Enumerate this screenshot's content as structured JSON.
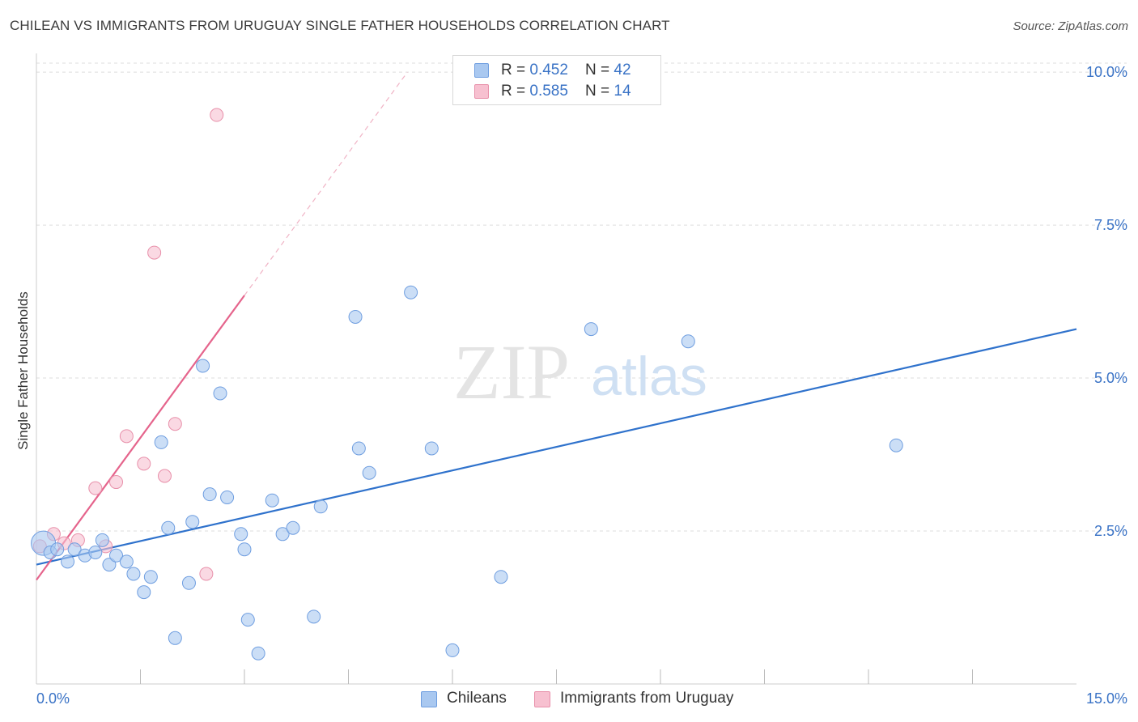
{
  "title": "CHILEAN VS IMMIGRANTS FROM URUGUAY SINGLE FATHER HOUSEHOLDS CORRELATION CHART",
  "source": "Source: ZipAtlas.com",
  "watermark": {
    "zip": "ZIP",
    "atlas": "atlas"
  },
  "legend": {
    "items": [
      {
        "r_label": "R = ",
        "r_value": "0.452",
        "n_label": "N = ",
        "n_value": "42",
        "color": "#a9c8f0",
        "border": "#6f9ee0"
      },
      {
        "r_label": "R = ",
        "r_value": "0.585",
        "n_label": "N = ",
        "n_value": "14",
        "color": "#f7c0d0",
        "border": "#e890aa"
      }
    ]
  },
  "bottom_legend": {
    "series1": "Chileans",
    "series2": "Immigrants from Uruguay"
  },
  "colors": {
    "blue_fill": "#a9c8f0",
    "blue_stroke": "#6f9ee0",
    "blue_line": "#2f72cc",
    "pink_fill": "#f7c0d0",
    "pink_stroke": "#e890aa",
    "pink_line": "#e5648c",
    "tick_label": "#3a73c6",
    "grid": "#dddddd"
  },
  "chart_data": {
    "type": "scatter",
    "title": "CHILEAN VS IMMIGRANTS FROM URUGUAY SINGLE FATHER HOUSEHOLDS CORRELATION CHART",
    "xlabel": "",
    "ylabel": "Single Father Households",
    "xlim": [
      0,
      15
    ],
    "ylim": [
      0,
      10.2
    ],
    "x_tick_labels": [
      {
        "value": 0,
        "label": "0.0%"
      },
      {
        "value": 15,
        "label": "15.0%"
      }
    ],
    "x_minor_ticks": [
      1.5,
      3.0,
      4.5,
      6.0,
      7.5,
      9.0,
      10.5,
      12.0,
      13.5
    ],
    "y_ticks": [
      {
        "value": 2.5,
        "label": "2.5%"
      },
      {
        "value": 5.0,
        "label": "5.0%"
      },
      {
        "value": 7.5,
        "label": "7.5%"
      },
      {
        "value": 10.0,
        "label": "10.0%"
      }
    ],
    "grid": true,
    "series": [
      {
        "name": "Chileans",
        "points": [
          [
            0.1,
            2.3
          ],
          [
            0.2,
            2.15
          ],
          [
            0.3,
            2.2
          ],
          [
            0.45,
            2.0
          ],
          [
            0.55,
            2.2
          ],
          [
            0.7,
            2.1
          ],
          [
            0.85,
            2.15
          ],
          [
            0.95,
            2.35
          ],
          [
            1.05,
            1.95
          ],
          [
            1.15,
            2.1
          ],
          [
            1.3,
            2.0
          ],
          [
            1.4,
            1.8
          ],
          [
            1.55,
            1.5
          ],
          [
            1.65,
            1.75
          ],
          [
            1.8,
            3.95
          ],
          [
            1.9,
            2.55
          ],
          [
            2.0,
            0.75
          ],
          [
            2.2,
            1.65
          ],
          [
            2.25,
            2.65
          ],
          [
            2.4,
            5.2
          ],
          [
            2.5,
            3.1
          ],
          [
            2.65,
            4.75
          ],
          [
            2.75,
            3.05
          ],
          [
            2.95,
            2.45
          ],
          [
            3.0,
            2.2
          ],
          [
            3.05,
            1.05
          ],
          [
            3.2,
            0.5
          ],
          [
            3.4,
            3.0
          ],
          [
            3.55,
            2.45
          ],
          [
            3.7,
            2.55
          ],
          [
            4.0,
            1.1
          ],
          [
            4.1,
            2.9
          ],
          [
            4.6,
            6.0
          ],
          [
            4.65,
            3.85
          ],
          [
            4.8,
            3.45
          ],
          [
            5.4,
            6.4
          ],
          [
            5.7,
            3.85
          ],
          [
            6.0,
            0.55
          ],
          [
            6.7,
            1.75
          ],
          [
            8.0,
            5.8
          ],
          [
            9.4,
            5.6
          ],
          [
            12.4,
            3.9
          ]
        ],
        "trendline": {
          "x": [
            0,
            15
          ],
          "y": [
            1.95,
            5.8
          ]
        }
      },
      {
        "name": "Immigrants from Uruguay",
        "points": [
          [
            0.05,
            2.25
          ],
          [
            0.25,
            2.45
          ],
          [
            0.4,
            2.3
          ],
          [
            0.6,
            2.35
          ],
          [
            0.85,
            3.2
          ],
          [
            1.0,
            2.25
          ],
          [
            1.15,
            3.3
          ],
          [
            1.3,
            4.05
          ],
          [
            1.55,
            3.6
          ],
          [
            1.7,
            7.05
          ],
          [
            1.85,
            3.4
          ],
          [
            2.0,
            4.25
          ],
          [
            2.45,
            1.8
          ],
          [
            2.6,
            9.3
          ]
        ],
        "trendline": {
          "x": [
            0,
            3.0
          ],
          "y": [
            1.7,
            6.35
          ]
        },
        "trendline_dashed_extension": {
          "x": [
            3.0,
            5.35
          ],
          "y": [
            6.35,
            10.0
          ]
        }
      }
    ]
  }
}
